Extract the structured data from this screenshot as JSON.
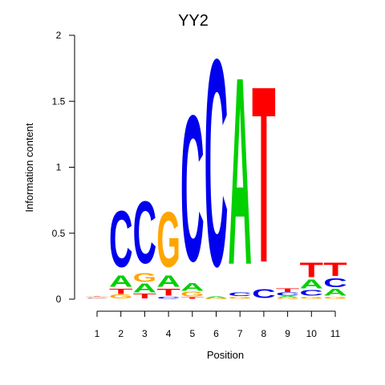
{
  "chart_data": {
    "type": "sequence-logo",
    "title": "YY2",
    "xlabel": "Position",
    "ylabel": "Information content",
    "ylim": [
      0,
      2
    ],
    "y_ticks": [
      "0",
      "0.5",
      "1",
      "1.5",
      "2"
    ],
    "positions": [
      "1",
      "2",
      "3",
      "4",
      "5",
      "6",
      "7",
      "8",
      "9",
      "10",
      "11"
    ],
    "colors": {
      "A": "#00d000",
      "C": "#0000ee",
      "G": "#ffa500",
      "T": "#ff0000"
    },
    "stacks": [
      [
        {
          "letter": "G",
          "height": 0.005
        },
        {
          "letter": "C",
          "height": 0.005
        },
        {
          "letter": "A",
          "height": 0.006
        },
        {
          "letter": "T",
          "height": 0.006
        }
      ],
      [
        {
          "letter": "G",
          "height": 0.035
        },
        {
          "letter": "T",
          "height": 0.045
        },
        {
          "letter": "A",
          "height": 0.1
        },
        {
          "letter": "C",
          "height": 0.5
        }
      ],
      [
        {
          "letter": "T",
          "height": 0.04
        },
        {
          "letter": "A",
          "height": 0.08
        },
        {
          "letter": "G",
          "height": 0.08
        },
        {
          "letter": "C",
          "height": 0.55
        }
      ],
      [
        {
          "letter": "C",
          "height": 0.02
        },
        {
          "letter": "T",
          "height": 0.06
        },
        {
          "letter": "A",
          "height": 0.1
        },
        {
          "letter": "G",
          "height": 0.49
        }
      ],
      [
        {
          "letter": "T",
          "height": 0.015
        },
        {
          "letter": "G",
          "height": 0.04
        },
        {
          "letter": "A",
          "height": 0.07
        },
        {
          "letter": "C",
          "height": 1.29
        }
      ],
      [
        {
          "letter": "G",
          "height": 0.007
        },
        {
          "letter": "A",
          "height": 0.012
        },
        {
          "letter": "C",
          "height": 1.83
        }
      ],
      [
        {
          "letter": "G",
          "height": 0.02
        },
        {
          "letter": "C",
          "height": 0.03
        },
        {
          "letter": "A",
          "height": 1.66
        }
      ],
      [
        {
          "letter": "C",
          "height": 0.08
        },
        {
          "letter": "T",
          "height": 1.56
        }
      ],
      [
        {
          "letter": "G",
          "height": 0.01
        },
        {
          "letter": "A",
          "height": 0.015
        },
        {
          "letter": "C",
          "height": 0.025
        },
        {
          "letter": "T",
          "height": 0.03
        }
      ],
      [
        {
          "letter": "G",
          "height": 0.02
        },
        {
          "letter": "C",
          "height": 0.05
        },
        {
          "letter": "A",
          "height": 0.08
        },
        {
          "letter": "T",
          "height": 0.13
        }
      ],
      [
        {
          "letter": "G",
          "height": 0.02
        },
        {
          "letter": "A",
          "height": 0.06
        },
        {
          "letter": "C",
          "height": 0.08
        },
        {
          "letter": "T",
          "height": 0.12
        }
      ]
    ]
  }
}
